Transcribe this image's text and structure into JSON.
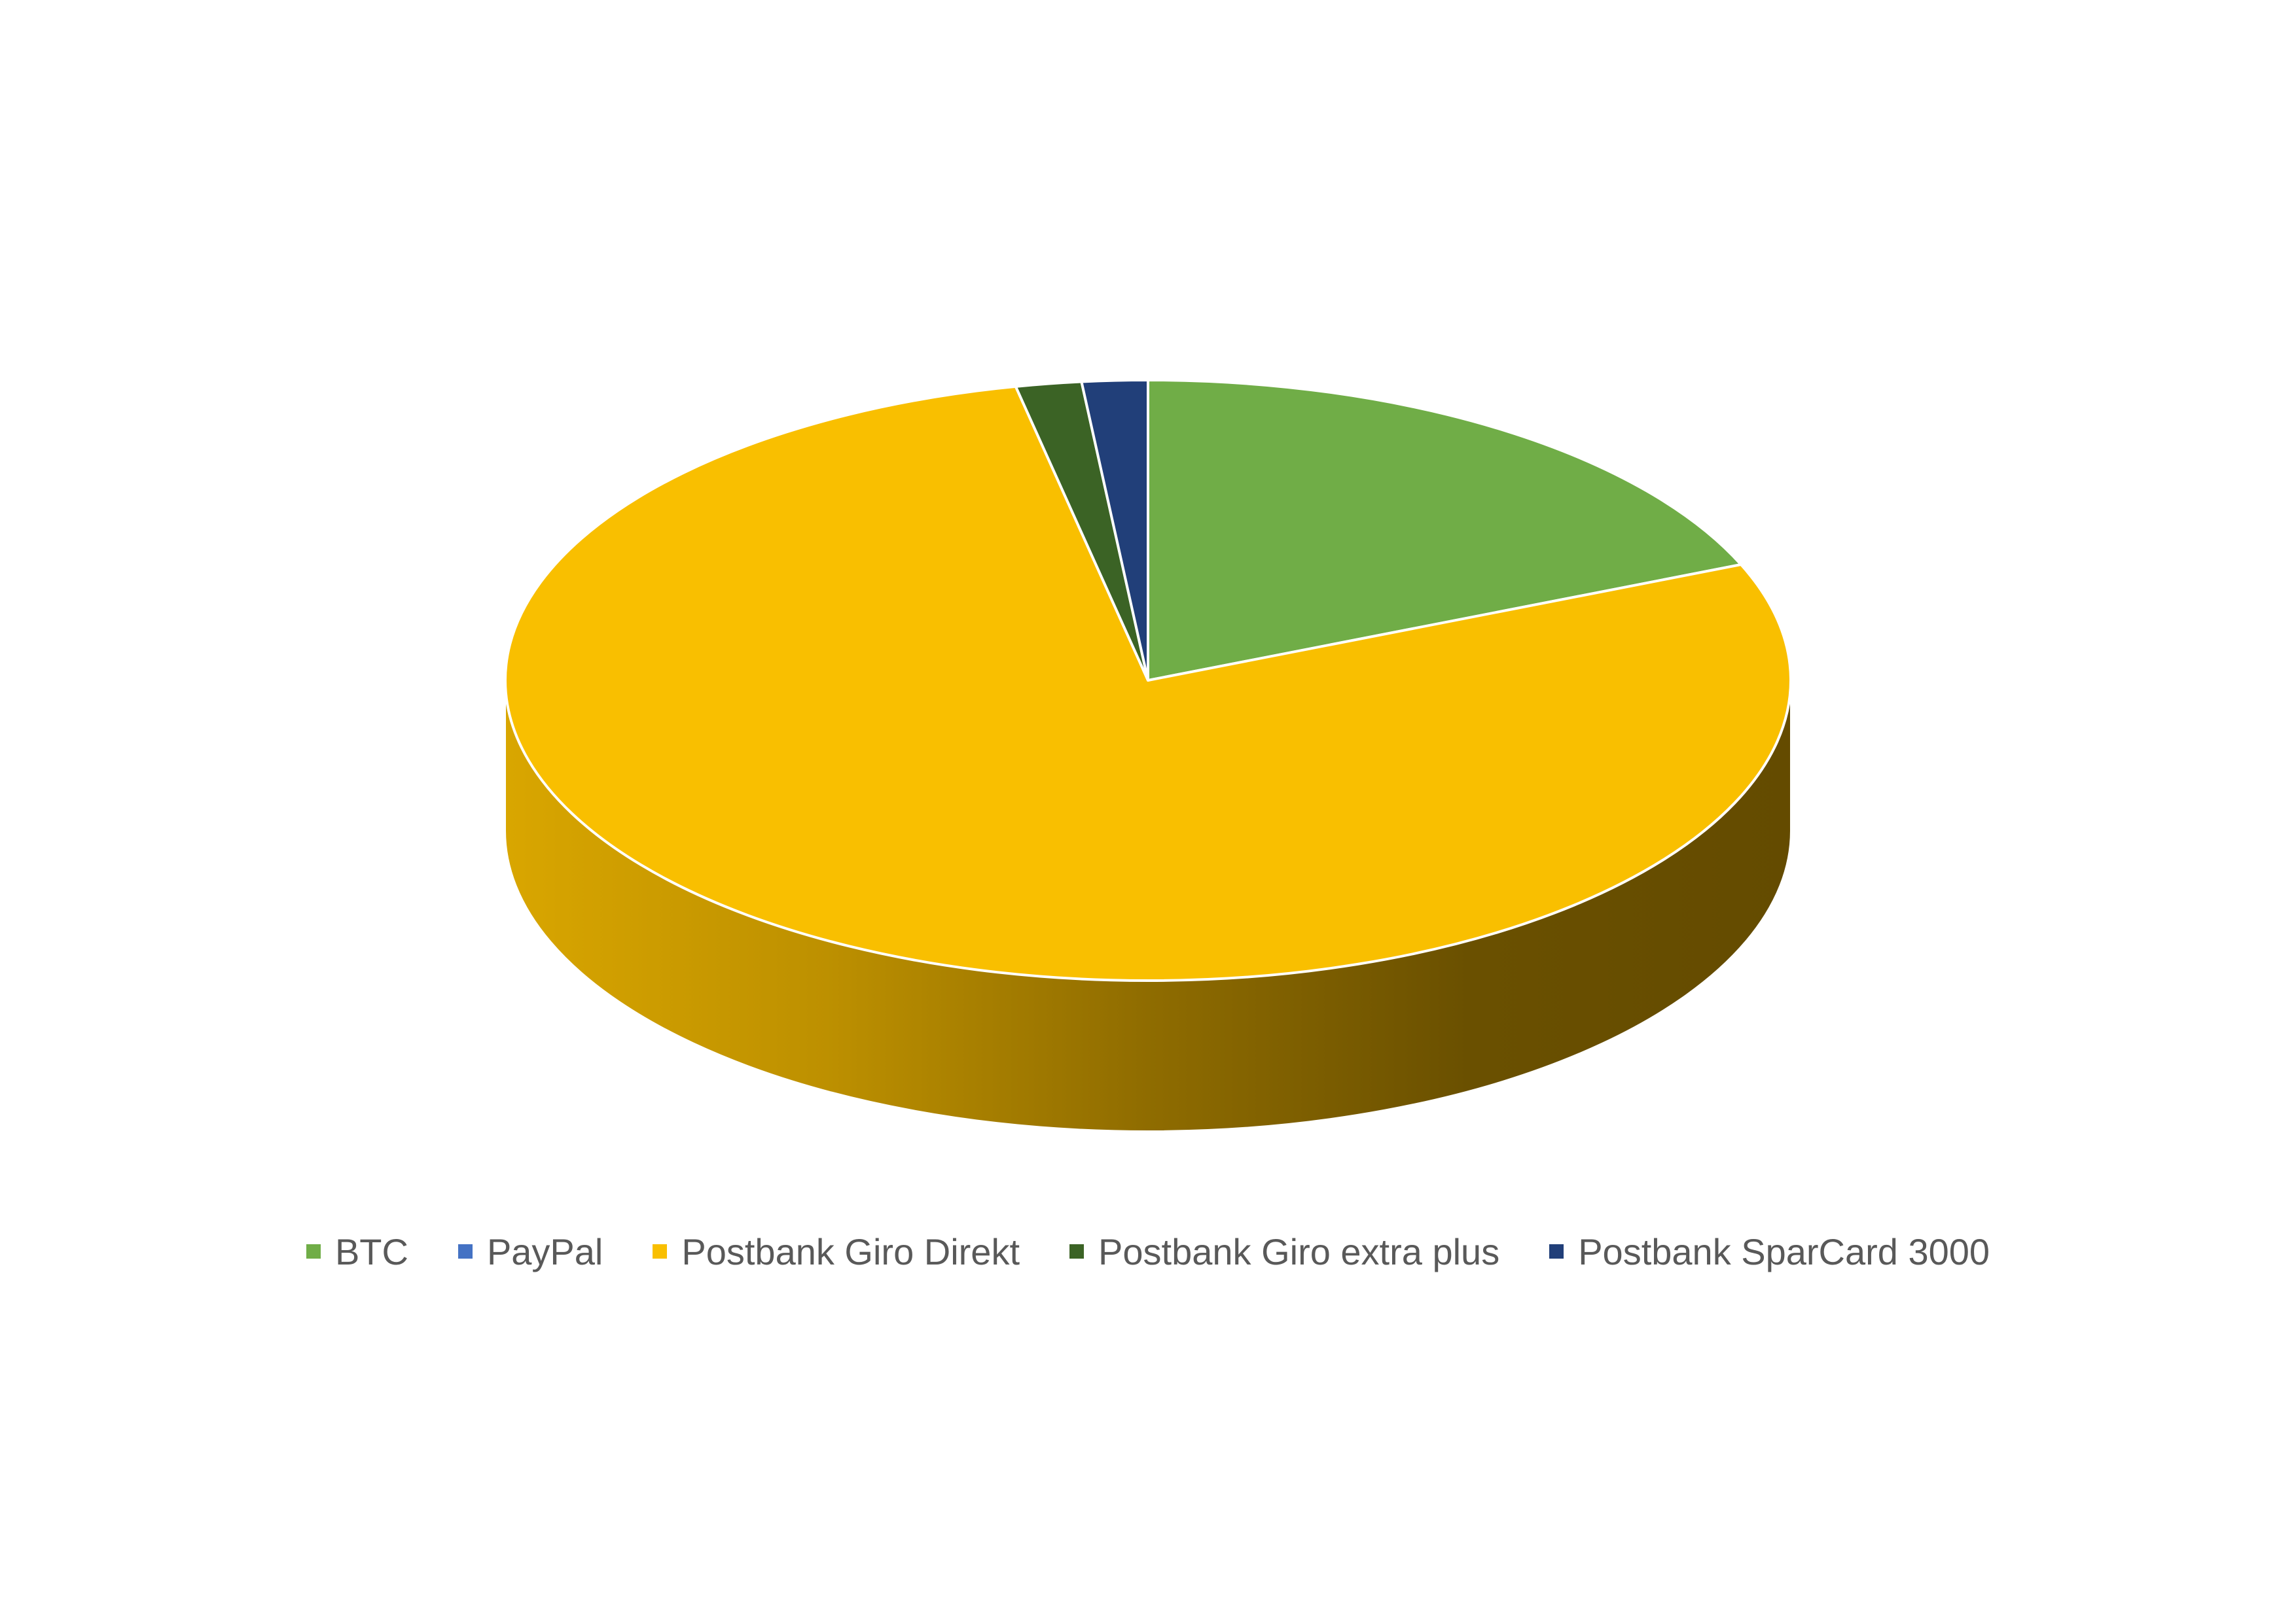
{
  "chart_data": {
    "type": "pie",
    "style": "3d",
    "legend_position": "bottom",
    "title": "",
    "categories": [
      "BTC",
      "PayPal",
      "Postbank Giro Direkt",
      "Postbank Giro extra plus",
      "Postbank SparCard 3000"
    ],
    "values": [
      18.7,
      0.0,
      78.0,
      1.65,
      1.65
    ],
    "unit": "%",
    "colors": [
      "#70ad47",
      "#4472c4",
      "#f9bf00",
      "#3b6325",
      "#213f79"
    ],
    "side_shades": {
      "Postbank Giro Direkt": [
        "#d9a600",
        "#bd9000",
        "#8f6c00",
        "#6a5000",
        "#644b00"
      ]
    },
    "edge_color": "#ffffff"
  }
}
